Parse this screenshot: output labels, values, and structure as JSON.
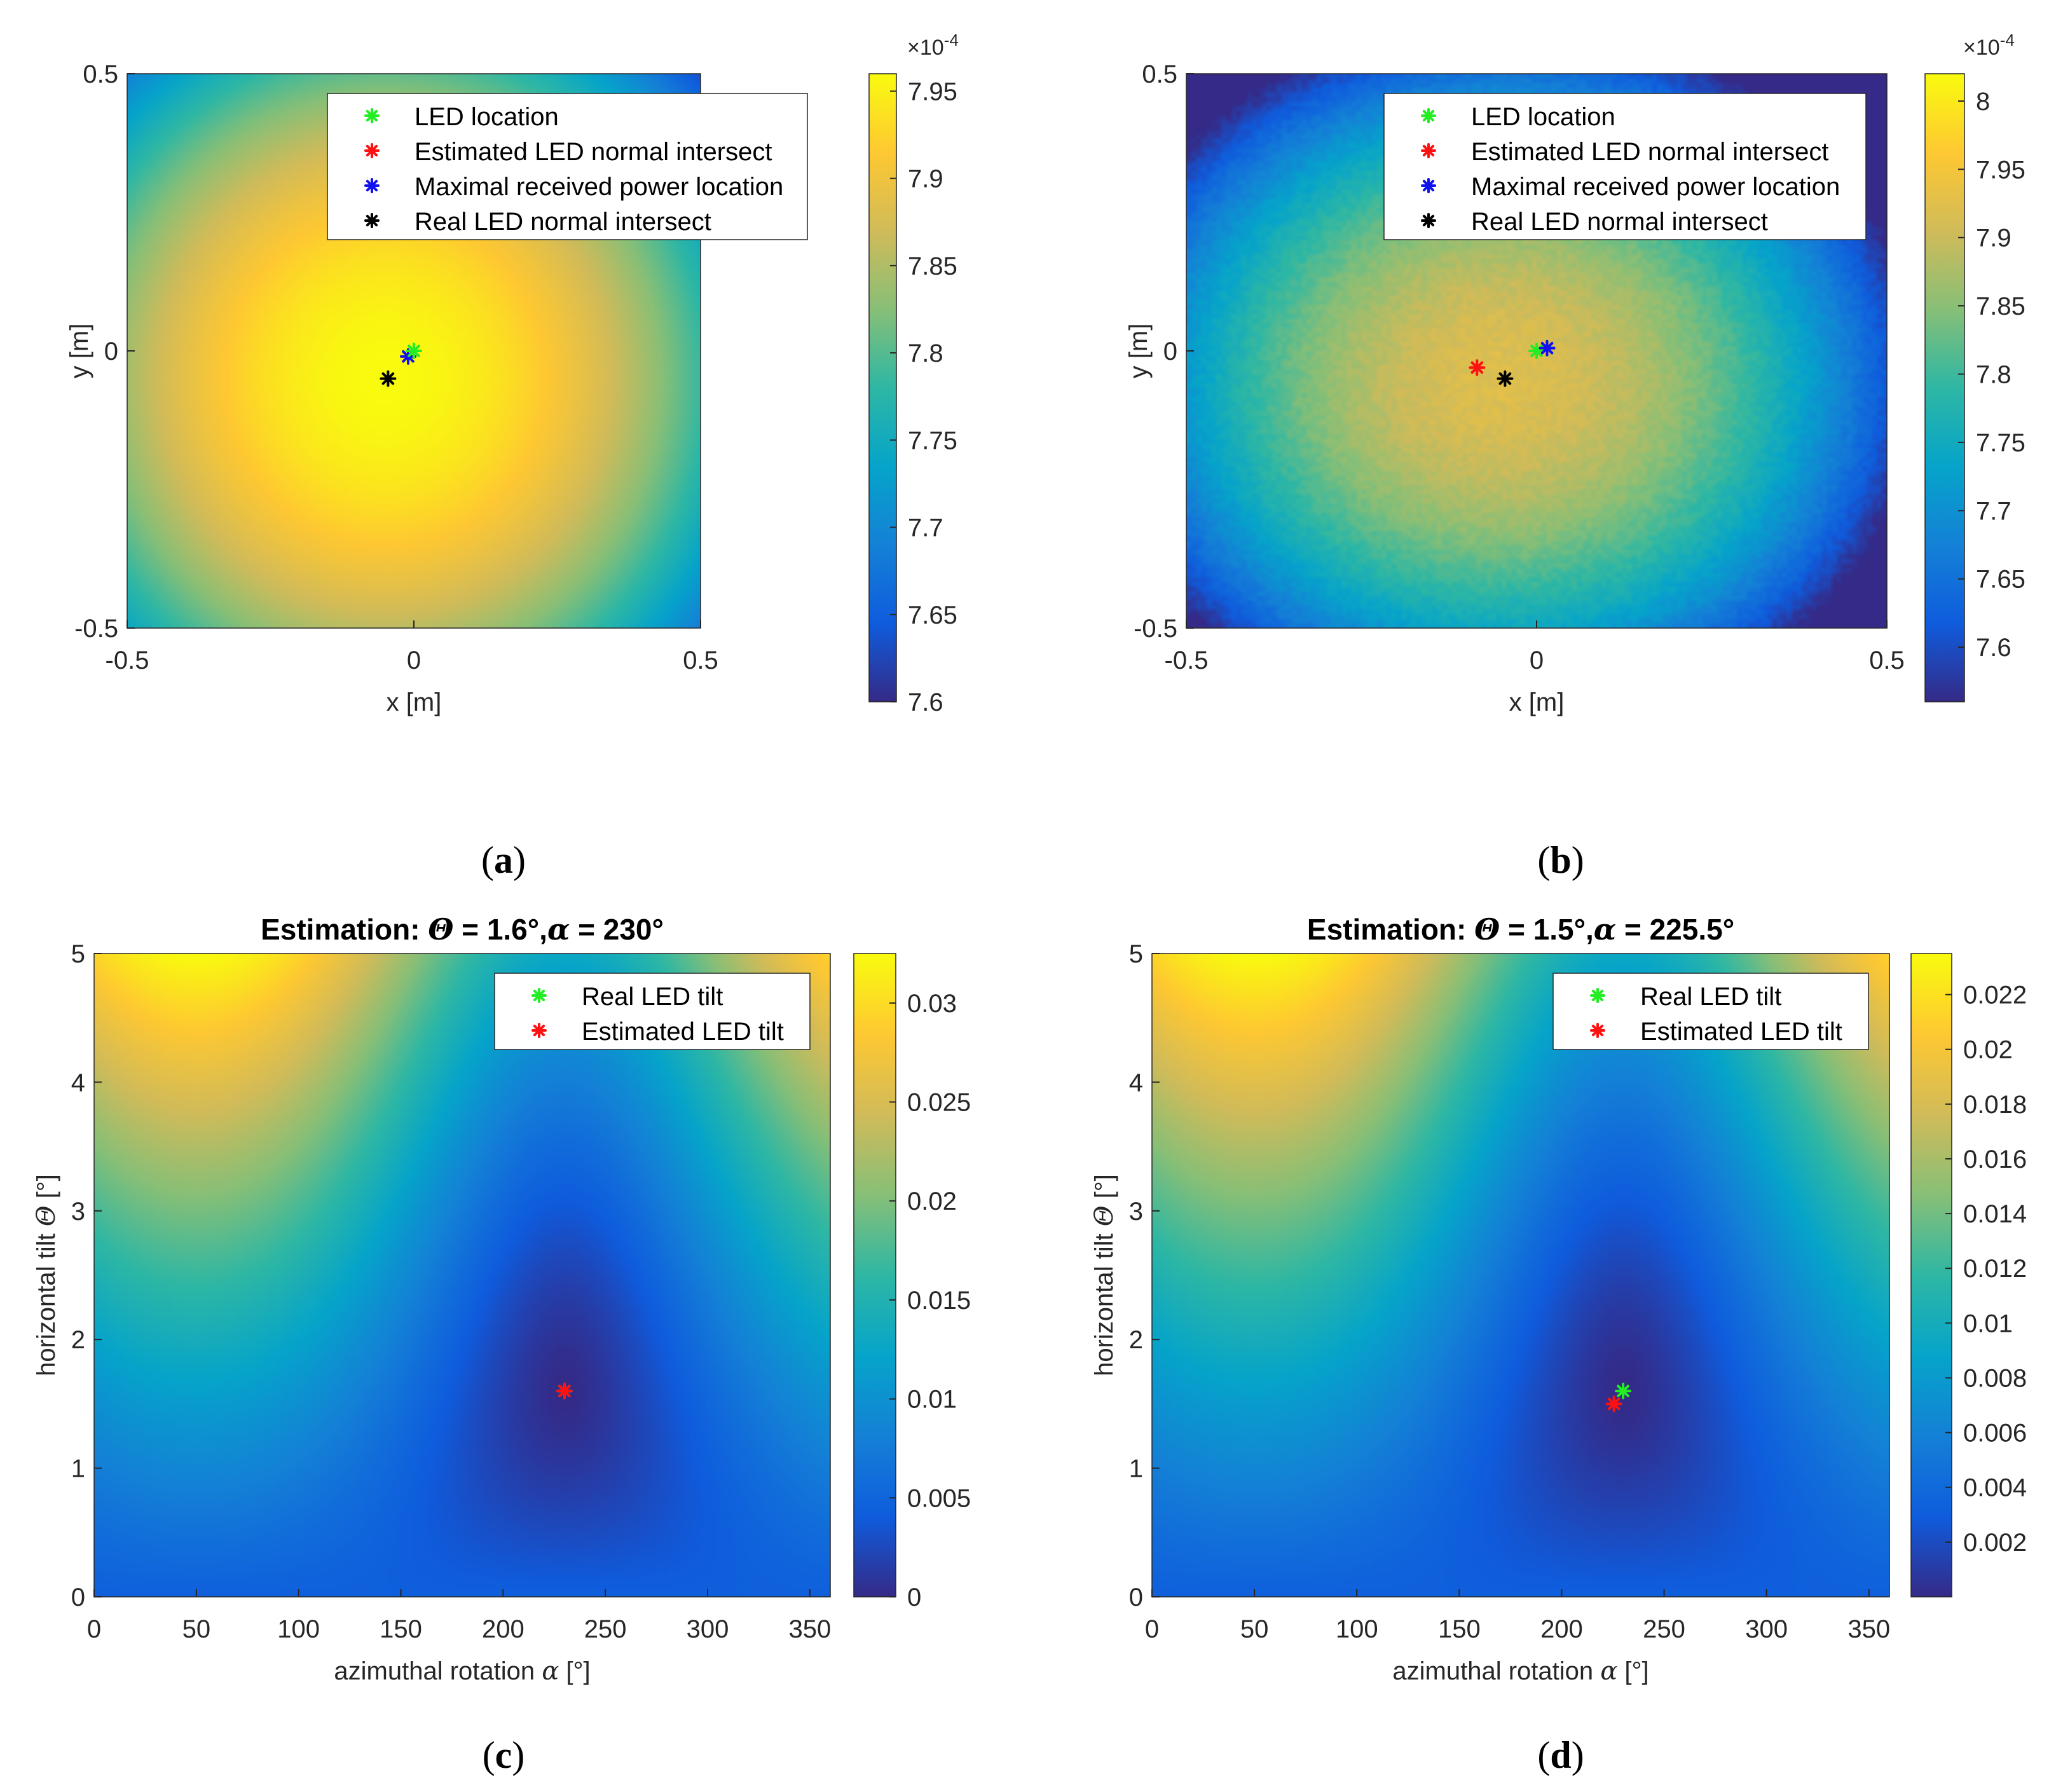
{
  "colors": {
    "parula": [
      "#352a87",
      "#0f5cdd",
      "#1481d6",
      "#06a4ca",
      "#2eb7a4",
      "#87bf77",
      "#d1bb59",
      "#fec832",
      "#f9fb0e"
    ],
    "marker_green": "#22ee22",
    "marker_red": "#ff1111",
    "marker_blue": "#1111ee",
    "marker_black": "#000000"
  },
  "chart_data": [
    {
      "id": "a",
      "type": "heatmap",
      "subfigure_label": "a",
      "title": "",
      "xlabel": "x [m]",
      "ylabel": "y [m]",
      "xlim": [
        -0.5,
        0.5
      ],
      "ylim": [
        -0.5,
        0.5
      ],
      "x_ticks": [
        "-0.5",
        "0",
        "0.5"
      ],
      "y_ticks": [
        "-0.5",
        "0",
        "0.5"
      ],
      "field": {
        "center": [
          -0.05,
          -0.05
        ],
        "peak": 7.96,
        "edge_x": 0.17,
        "edge_y": 0.23,
        "noise": 0
      },
      "colorbar": {
        "range": [
          7.6,
          7.96
        ],
        "ticks": [
          "7.6",
          "7.65",
          "7.7",
          "7.75",
          "7.8",
          "7.85",
          "7.9",
          "7.95"
        ],
        "tick_values": [
          7.6,
          7.65,
          7.7,
          7.75,
          7.8,
          7.85,
          7.9,
          7.95
        ],
        "multiplier": "×10",
        "multiplier_exp": "-4"
      },
      "legend": [
        {
          "label": "LED location",
          "color": "marker_green"
        },
        {
          "label": "Estimated LED normal intersect",
          "color": "marker_red"
        },
        {
          "label": "Maximal received power location",
          "color": "marker_blue"
        },
        {
          "label": "Real LED normal intersect",
          "color": "marker_black"
        }
      ],
      "points": [
        {
          "name": "Real LED normal intersect",
          "x": -0.045,
          "y": -0.05,
          "color": "marker_black"
        },
        {
          "name": "Estimated LED normal intersect",
          "x": -0.01,
          "y": -0.01,
          "color": "marker_red"
        },
        {
          "name": "Maximal received power location",
          "x": -0.01,
          "y": -0.01,
          "color": "marker_blue"
        },
        {
          "name": "LED location",
          "x": 0.0,
          "y": 0.0,
          "color": "marker_green"
        }
      ]
    },
    {
      "id": "b",
      "type": "heatmap",
      "subfigure_label": "b",
      "title": "",
      "xlabel": "x [m]",
      "ylabel": "y [m]",
      "xlim": [
        -0.5,
        0.5
      ],
      "ylim": [
        -0.5,
        0.5
      ],
      "x_ticks": [
        "-0.5",
        "0",
        "0.5"
      ],
      "y_ticks": [
        "-0.5",
        "0",
        "0.5"
      ],
      "field": {
        "center": [
          -0.05,
          -0.05
        ],
        "peak": 7.92,
        "edge_x": 0.3,
        "edge_y": 0.4,
        "noise": 0.025
      },
      "colorbar": {
        "range": [
          7.56,
          8.02
        ],
        "ticks": [
          "7.6",
          "7.65",
          "7.7",
          "7.75",
          "7.8",
          "7.85",
          "7.9",
          "7.95",
          "8"
        ],
        "tick_values": [
          7.6,
          7.65,
          7.7,
          7.75,
          7.8,
          7.85,
          7.9,
          7.95,
          8.0
        ],
        "multiplier": "×10",
        "multiplier_exp": "-4"
      },
      "legend": [
        {
          "label": "LED location",
          "color": "marker_green"
        },
        {
          "label": "Estimated LED normal intersect",
          "color": "marker_red"
        },
        {
          "label": "Maximal received power location",
          "color": "marker_blue"
        },
        {
          "label": "Real LED normal intersect",
          "color": "marker_black"
        }
      ],
      "points": [
        {
          "name": "Estimated LED normal intersect",
          "x": -0.085,
          "y": -0.03,
          "color": "marker_red"
        },
        {
          "name": "Real LED normal intersect",
          "x": -0.045,
          "y": -0.05,
          "color": "marker_black"
        },
        {
          "name": "LED location",
          "x": 0.0,
          "y": 0.0,
          "color": "marker_green"
        },
        {
          "name": "Maximal received power location",
          "x": 0.015,
          "y": 0.005,
          "color": "marker_blue"
        }
      ]
    },
    {
      "id": "c",
      "type": "heatmap",
      "subfigure_label": "c",
      "title_prefix": "Estimation: ",
      "title_theta_symbol": "Θ",
      "title_theta_value": " = 1.6°,",
      "title_alpha_symbol": "α",
      "title_alpha_value": " = 230°",
      "xlabel_text": "azimuthal rotation ",
      "xlabel_symbol": "α",
      "xlabel_unit": " [°]",
      "ylabel_text": "horizontal tilt ",
      "ylabel_symbol": "Θ",
      "ylabel_unit": " [°]",
      "xlim": [
        0,
        360
      ],
      "ylim": [
        0,
        5
      ],
      "x_ticks": [
        "0",
        "50",
        "100",
        "150",
        "200",
        "250",
        "300",
        "350"
      ],
      "y_ticks": [
        "0",
        "1",
        "2",
        "3",
        "4",
        "5"
      ],
      "field": {
        "alpha0": 230,
        "theta0": 1.6,
        "max": 0.0325,
        "k": 0.7,
        "noise": 0
      },
      "colorbar": {
        "range": [
          0,
          0.0325
        ],
        "ticks": [
          "0",
          "0.005",
          "0.01",
          "0.015",
          "0.02",
          "0.025",
          "0.03"
        ],
        "tick_values": [
          0,
          0.005,
          0.01,
          0.015,
          0.02,
          0.025,
          0.03
        ]
      },
      "legend": [
        {
          "label": "Real LED tilt",
          "color": "marker_green"
        },
        {
          "label": "Estimated LED tilt",
          "color": "marker_red"
        }
      ],
      "points": [
        {
          "name": "Real LED tilt",
          "x": 230,
          "y": 1.6,
          "color": "marker_green"
        },
        {
          "name": "Estimated LED tilt",
          "x": 230,
          "y": 1.6,
          "color": "marker_red"
        }
      ]
    },
    {
      "id": "d",
      "type": "heatmap",
      "subfigure_label": "d",
      "title_prefix": "Estimation: ",
      "title_theta_symbol": "Θ",
      "title_theta_value": " = 1.5°,",
      "title_alpha_symbol": "α",
      "title_alpha_value": " = 225.5°",
      "xlabel_text": "azimuthal rotation ",
      "xlabel_symbol": "α",
      "xlabel_unit": " [°]",
      "ylabel_text": "horizontal tilt ",
      "ylabel_symbol": "Θ",
      "ylabel_unit": " [°]",
      "xlim": [
        0,
        360
      ],
      "ylim": [
        0,
        5
      ],
      "x_ticks": [
        "0",
        "50",
        "100",
        "150",
        "200",
        "250",
        "300",
        "350"
      ],
      "y_ticks": [
        "0",
        "1",
        "2",
        "3",
        "4",
        "5"
      ],
      "field": {
        "alpha0": 230,
        "theta0": 1.6,
        "max": 0.0235,
        "k": 0.7,
        "noise": 0
      },
      "colorbar": {
        "range": [
          0,
          0.0235
        ],
        "ticks": [
          "0.002",
          "0.004",
          "0.006",
          "0.008",
          "0.01",
          "0.012",
          "0.014",
          "0.016",
          "0.018",
          "0.02",
          "0.022"
        ],
        "tick_values": [
          0.002,
          0.004,
          0.006,
          0.008,
          0.01,
          0.012,
          0.014,
          0.016,
          0.018,
          0.02,
          0.022
        ]
      },
      "legend": [
        {
          "label": "Real LED tilt",
          "color": "marker_green"
        },
        {
          "label": "Estimated LED tilt",
          "color": "marker_red"
        }
      ],
      "points": [
        {
          "name": "Real LED tilt",
          "x": 230,
          "y": 1.6,
          "color": "marker_green"
        },
        {
          "name": "Estimated LED tilt",
          "x": 225.5,
          "y": 1.5,
          "color": "marker_red"
        }
      ]
    }
  ]
}
